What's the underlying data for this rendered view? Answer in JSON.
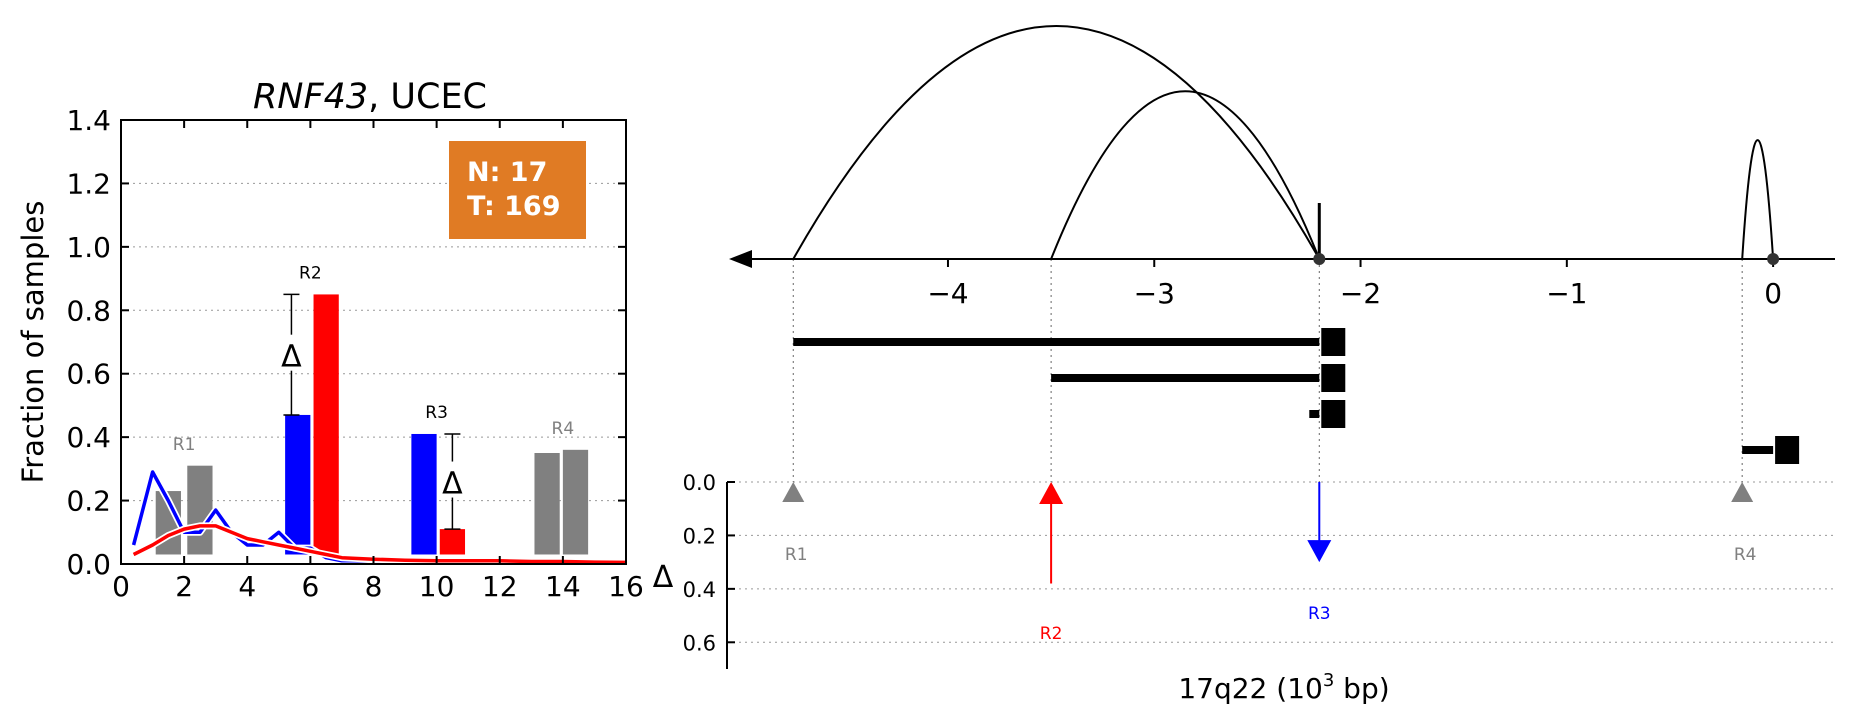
{
  "chart_data": [
    {
      "type": "bar",
      "title_gene": "RNF43",
      "title_rest": ", UCEC",
      "ylabel": "Fraction of samples",
      "xlim": [
        0,
        16
      ],
      "ylim": [
        0,
        1.4
      ],
      "xticks": [
        "0",
        "2",
        "4",
        "6",
        "8",
        "10",
        "12",
        "14",
        "16"
      ],
      "yticks": [
        "0.0",
        "0.2",
        "0.4",
        "0.6",
        "0.8",
        "1.0",
        "1.2",
        "1.4"
      ],
      "grid": "horizontal dotted",
      "colors": {
        "normal": "#0000ff",
        "tumor": "#ff0000",
        "neutral": "#808080",
        "badge": "#e07b24"
      },
      "legend_box": {
        "line1": "N: 17",
        "line2": "T: 169"
      },
      "bars": [
        {
          "region": "R1",
          "color": "gray",
          "x0": 1.1,
          "x1": 1.9,
          "y0": 0.03,
          "y1": 0.23
        },
        {
          "region": "R1",
          "color": "gray",
          "x0": 2.1,
          "x1": 2.9,
          "y0": 0.03,
          "y1": 0.31
        },
        {
          "region": "R2",
          "color": "blue",
          "x0": 5.2,
          "x1": 6.0,
          "y0": 0.03,
          "y1": 0.47
        },
        {
          "region": "R2",
          "color": "red",
          "x0": 6.1,
          "x1": 6.9,
          "y0": 0.03,
          "y1": 0.85
        },
        {
          "region": "R3",
          "color": "blue",
          "x0": 9.2,
          "x1": 10.0,
          "y0": 0.03,
          "y1": 0.41
        },
        {
          "region": "R3",
          "color": "red",
          "x0": 10.1,
          "x1": 10.9,
          "y0": 0.03,
          "y1": 0.11
        },
        {
          "region": "R4",
          "color": "gray",
          "x0": 13.1,
          "x1": 13.9,
          "y0": 0.03,
          "y1": 0.35
        },
        {
          "region": "R4",
          "color": "gray",
          "x0": 14.0,
          "x1": 14.8,
          "y0": 0.03,
          "y1": 0.36
        }
      ],
      "region_labels": [
        {
          "label": "R1",
          "x": 2.0,
          "y": 0.36,
          "color": "gray"
        },
        {
          "label": "R2",
          "x": 6.0,
          "y": 0.9,
          "color": "black"
        },
        {
          "label": "R3",
          "x": 10.0,
          "y": 0.46,
          "color": "black"
        },
        {
          "label": "R4",
          "x": 14.0,
          "y": 0.41,
          "color": "gray"
        }
      ],
      "deltas": [
        {
          "x": 5.4,
          "y_low": 0.47,
          "y_high": 0.85,
          "symbol": "Δ"
        },
        {
          "x": 10.5,
          "y_low": 0.11,
          "y_high": 0.41,
          "symbol": "Δ"
        }
      ],
      "series": [
        {
          "color": "blue",
          "x": [
            0.4,
            1.0,
            1.5,
            2.0,
            2.5,
            3.0,
            3.5,
            4.0,
            4.5,
            5.0,
            5.5,
            6.0,
            6.5,
            7.0,
            8.0,
            9.0,
            10.0,
            11.0,
            12.0,
            13.0,
            14.0,
            15.0,
            16.0
          ],
          "y": [
            0.06,
            0.29,
            0.2,
            0.1,
            0.1,
            0.17,
            0.1,
            0.06,
            0.06,
            0.1,
            0.05,
            0.05,
            0.02,
            0.01,
            0.01,
            0.005,
            0.005,
            0.005,
            0.005,
            0.005,
            0.005,
            0.005,
            0.005
          ]
        },
        {
          "color": "red",
          "x": [
            0.4,
            1.0,
            1.5,
            2.0,
            2.5,
            3.0,
            3.5,
            4.0,
            4.5,
            5.0,
            5.5,
            6.0,
            6.5,
            7.0,
            8.0,
            9.0,
            10.0,
            11.0,
            12.0,
            13.0,
            14.0,
            15.0,
            16.0
          ],
          "y": [
            0.03,
            0.06,
            0.09,
            0.11,
            0.12,
            0.12,
            0.1,
            0.08,
            0.07,
            0.06,
            0.05,
            0.04,
            0.03,
            0.02,
            0.015,
            0.012,
            0.01,
            0.01,
            0.01,
            0.008,
            0.008,
            0.006,
            0.005
          ]
        }
      ]
    },
    {
      "type": "genomic-arcs",
      "xlabel_main": "17q22 (10",
      "xlabel_sup": "3",
      "xlabel_end": " bp)",
      "xlim": [
        -4.95,
        0.3
      ],
      "xticks": [
        "−4",
        "−3",
        "−2",
        "−1",
        "0"
      ],
      "ylabel": "Δ",
      "ylim": [
        0.0,
        0.7
      ],
      "yticks": [
        "0.0",
        "0.2",
        "0.4",
        "0.6"
      ],
      "arcs": [
        {
          "from": -4.75,
          "to": -2.2,
          "height": 1.0
        },
        {
          "from": -3.5,
          "to": -2.2,
          "height": 0.72
        },
        {
          "from": -0.15,
          "to": 0.0,
          "height": 0.51
        }
      ],
      "dots": [
        -2.2,
        0.0
      ],
      "spike": -2.2,
      "segments": [
        {
          "from": -4.75,
          "to": -2.2,
          "row": 0
        },
        {
          "from": -3.5,
          "to": -2.2,
          "row": 1
        },
        {
          "from": -2.2,
          "to": -2.2,
          "row": 2
        },
        {
          "from": -0.15,
          "to": 0.0,
          "row": 3
        }
      ],
      "regions": [
        {
          "label": "R1",
          "x": -4.75,
          "delta": 0.0,
          "color": "gray",
          "direction": "marker"
        },
        {
          "label": "R2",
          "x": -3.5,
          "delta": 0.38,
          "color": "red",
          "direction": "up"
        },
        {
          "label": "R3",
          "x": -2.2,
          "delta": 0.3,
          "color": "blue",
          "direction": "down"
        },
        {
          "label": "R4",
          "x": -0.15,
          "delta": 0.0,
          "color": "gray",
          "direction": "marker"
        }
      ]
    }
  ]
}
